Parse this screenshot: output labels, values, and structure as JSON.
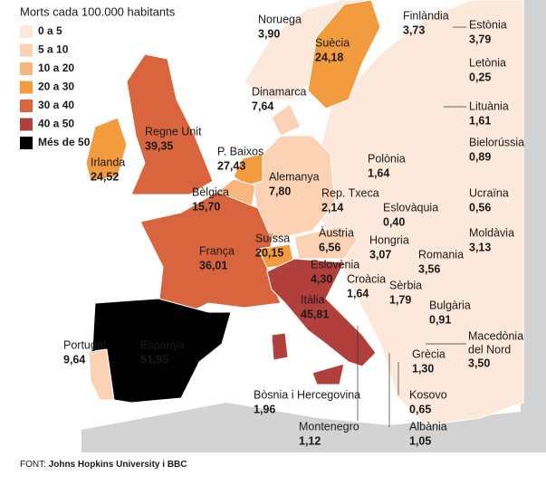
{
  "legend": {
    "title": "Morts cada 100.000 habitants",
    "items": [
      {
        "label": "0 a 5",
        "color": "#fde9dc"
      },
      {
        "label": "5 a 10",
        "color": "#fbd3b4"
      },
      {
        "label": "10 a 20",
        "color": "#f8b57c"
      },
      {
        "label": "20 a 30",
        "color": "#f39b3f"
      },
      {
        "label": "30 a 40",
        "color": "#d9653f"
      },
      {
        "label": "40 a 50",
        "color": "#b1403d"
      },
      {
        "label": "Més de 50",
        "color": "#000000"
      }
    ]
  },
  "countries": [
    {
      "name": "Noruega",
      "value": 3.9,
      "label": "3,90",
      "color": "#fde9dc"
    },
    {
      "name": "Suècia",
      "value": 24.18,
      "label": "24,18",
      "color": "#f39b3f"
    },
    {
      "name": "Finlàndia",
      "value": 3.73,
      "label": "3,73",
      "color": "#fde9dc"
    },
    {
      "name": "Estònia",
      "value": 3.79,
      "label": "3,79",
      "color": "#fde9dc"
    },
    {
      "name": "Letònia",
      "value": 0.25,
      "label": "0,25",
      "color": "#fde9dc"
    },
    {
      "name": "Lituània",
      "value": 1.61,
      "label": "1,61",
      "color": "#fde9dc"
    },
    {
      "name": "Bielorússia",
      "value": 0.89,
      "label": "0,89",
      "color": "#fde9dc"
    },
    {
      "name": "Ucraïna",
      "value": 0.56,
      "label": "0,56",
      "color": "#fde9dc"
    },
    {
      "name": "Moldàvia",
      "value": 3.13,
      "label": "3,13",
      "color": "#fde9dc"
    },
    {
      "name": "Dinamarca",
      "value": 7.64,
      "label": "7,64",
      "color": "#fbd3b4"
    },
    {
      "name": "Regne Unit",
      "value": 39.35,
      "label": "39,35",
      "color": "#d9653f"
    },
    {
      "name": "Irlanda",
      "value": 24.52,
      "label": "24,52",
      "color": "#f39b3f"
    },
    {
      "name": "P. Baixos",
      "value": 27.43,
      "label": "27,43",
      "color": "#f39b3f"
    },
    {
      "name": "Polònia",
      "value": 1.64,
      "label": "1,64",
      "color": "#fde9dc"
    },
    {
      "name": "Alemanya",
      "value": 7.8,
      "label": "7,80",
      "color": "#fbd3b4"
    },
    {
      "name": "Bèlgica",
      "value": 15.7,
      "label": "15,70",
      "color": "#f8b57c"
    },
    {
      "name": "Rep. Txeca",
      "value": 2.14,
      "label": "2,14",
      "color": "#fde9dc"
    },
    {
      "name": "Eslovàquia",
      "value": 0.4,
      "label": "0,40",
      "color": "#fde9dc"
    },
    {
      "name": "Suïssa",
      "value": 20.15,
      "label": "20,15",
      "color": "#f39b3f"
    },
    {
      "name": "França",
      "value": 36.01,
      "label": "36,01",
      "color": "#d9653f",
      "label_color": "#ffffff"
    },
    {
      "name": "Àustria",
      "value": 6.56,
      "label": "6,56",
      "color": "#fbd3b4"
    },
    {
      "name": "Hongria",
      "value": 3.07,
      "label": "3,07",
      "color": "#fde9dc"
    },
    {
      "name": "Romania",
      "value": 3.56,
      "label": "3,56",
      "color": "#fde9dc"
    },
    {
      "name": "Eslovènia",
      "value": 4.3,
      "label": "4,30",
      "color": "#fde9dc"
    },
    {
      "name": "Croàcia",
      "value": 1.64,
      "label": "1,64",
      "color": "#fde9dc"
    },
    {
      "name": "Sèrbia",
      "value": 1.79,
      "label": "1,79",
      "color": "#fde9dc"
    },
    {
      "name": "Itàlia",
      "value": 45.81,
      "label": "45,81",
      "color": "#b1403d",
      "label_color": "#ffffff"
    },
    {
      "name": "Bulgària",
      "value": 0.91,
      "label": "0,91",
      "color": "#fde9dc"
    },
    {
      "name_lines": [
        "Macedònia",
        "del Nord"
      ],
      "value": 3.5,
      "label": "3,50",
      "color": "#fde9dc"
    },
    {
      "name": "Portugal",
      "value": 9.64,
      "label": "9,64",
      "color": "#fbd3b4"
    },
    {
      "name": "Espanya",
      "value": 51.95,
      "label": "51,95",
      "color": "#000000",
      "label_color": "#ffffff"
    },
    {
      "name": "Grècia",
      "value": 1.3,
      "label": "1,30",
      "color": "#fde9dc"
    },
    {
      "name": "Bòsnia i Hercegovina",
      "value": 1.96,
      "label": "1,96",
      "color": "#fde9dc"
    },
    {
      "name": "Kosovo",
      "value": 0.65,
      "label": "0,65",
      "color": "#fde9dc"
    },
    {
      "name": "Montenegro",
      "value": 1.12,
      "label": "1,12",
      "color": "#fde9dc"
    },
    {
      "name": "Albània",
      "value": 1.05,
      "label": "1,05",
      "color": "#fde9dc"
    }
  ],
  "source": {
    "prefix": "FONT:",
    "text": "Johns Hopkins University i BBC"
  }
}
